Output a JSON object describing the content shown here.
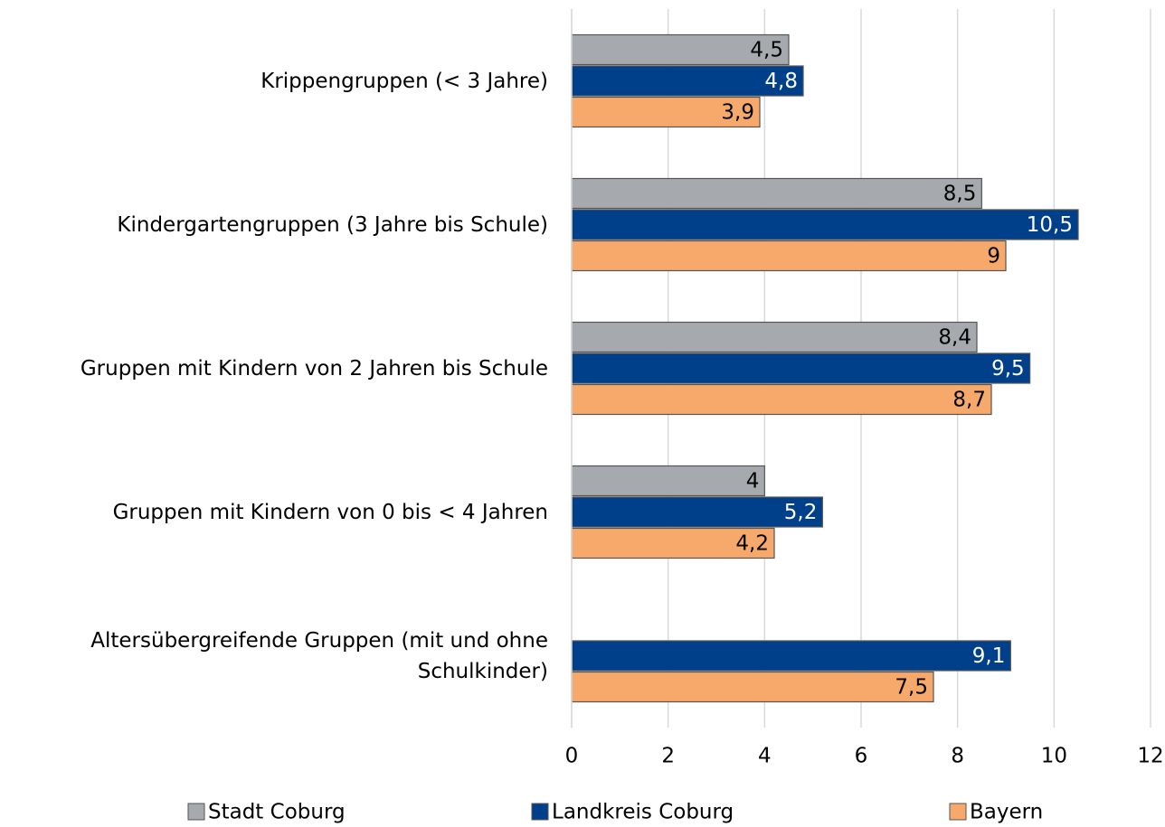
{
  "chart_data": {
    "type": "bar",
    "orientation": "horizontal",
    "categories": [
      "Krippengruppen (< 3 Jahre)",
      "Kindergartengruppen (3 Jahre bis Schule)",
      "Gruppen mit Kindern von 2 Jahren bis Schule",
      "Gruppen mit Kindern von 0 bis < 4 Jahren",
      "Altersübergreifende Gruppen (mit und ohne Schulkinder)"
    ],
    "series": [
      {
        "name": "Stadt Coburg",
        "color": "#a6a9ad",
        "label_color": "#000000",
        "values": [
          4.5,
          8.5,
          8.4,
          4,
          null
        ],
        "value_labels": [
          "4,5",
          "8,5",
          "8,4",
          "4",
          null
        ]
      },
      {
        "name": "Landkreis Coburg",
        "color": "#003f8a",
        "label_color": "#ffffff",
        "values": [
          4.8,
          10.5,
          9.5,
          5.2,
          9.1
        ],
        "value_labels": [
          "4,8",
          "10,5",
          "9,5",
          "5,2",
          "9,1"
        ]
      },
      {
        "name": "Bayern",
        "color": "#f7a96b",
        "label_color": "#000000",
        "values": [
          3.9,
          9,
          8.7,
          4.2,
          7.5
        ],
        "value_labels": [
          "3,9",
          "9",
          "8,7",
          "4,2",
          "7,5"
        ]
      }
    ],
    "xlim": [
      0,
      12
    ],
    "xticks": [
      0,
      2,
      4,
      6,
      8,
      10,
      12
    ],
    "grid": true,
    "legend": "bottom"
  }
}
